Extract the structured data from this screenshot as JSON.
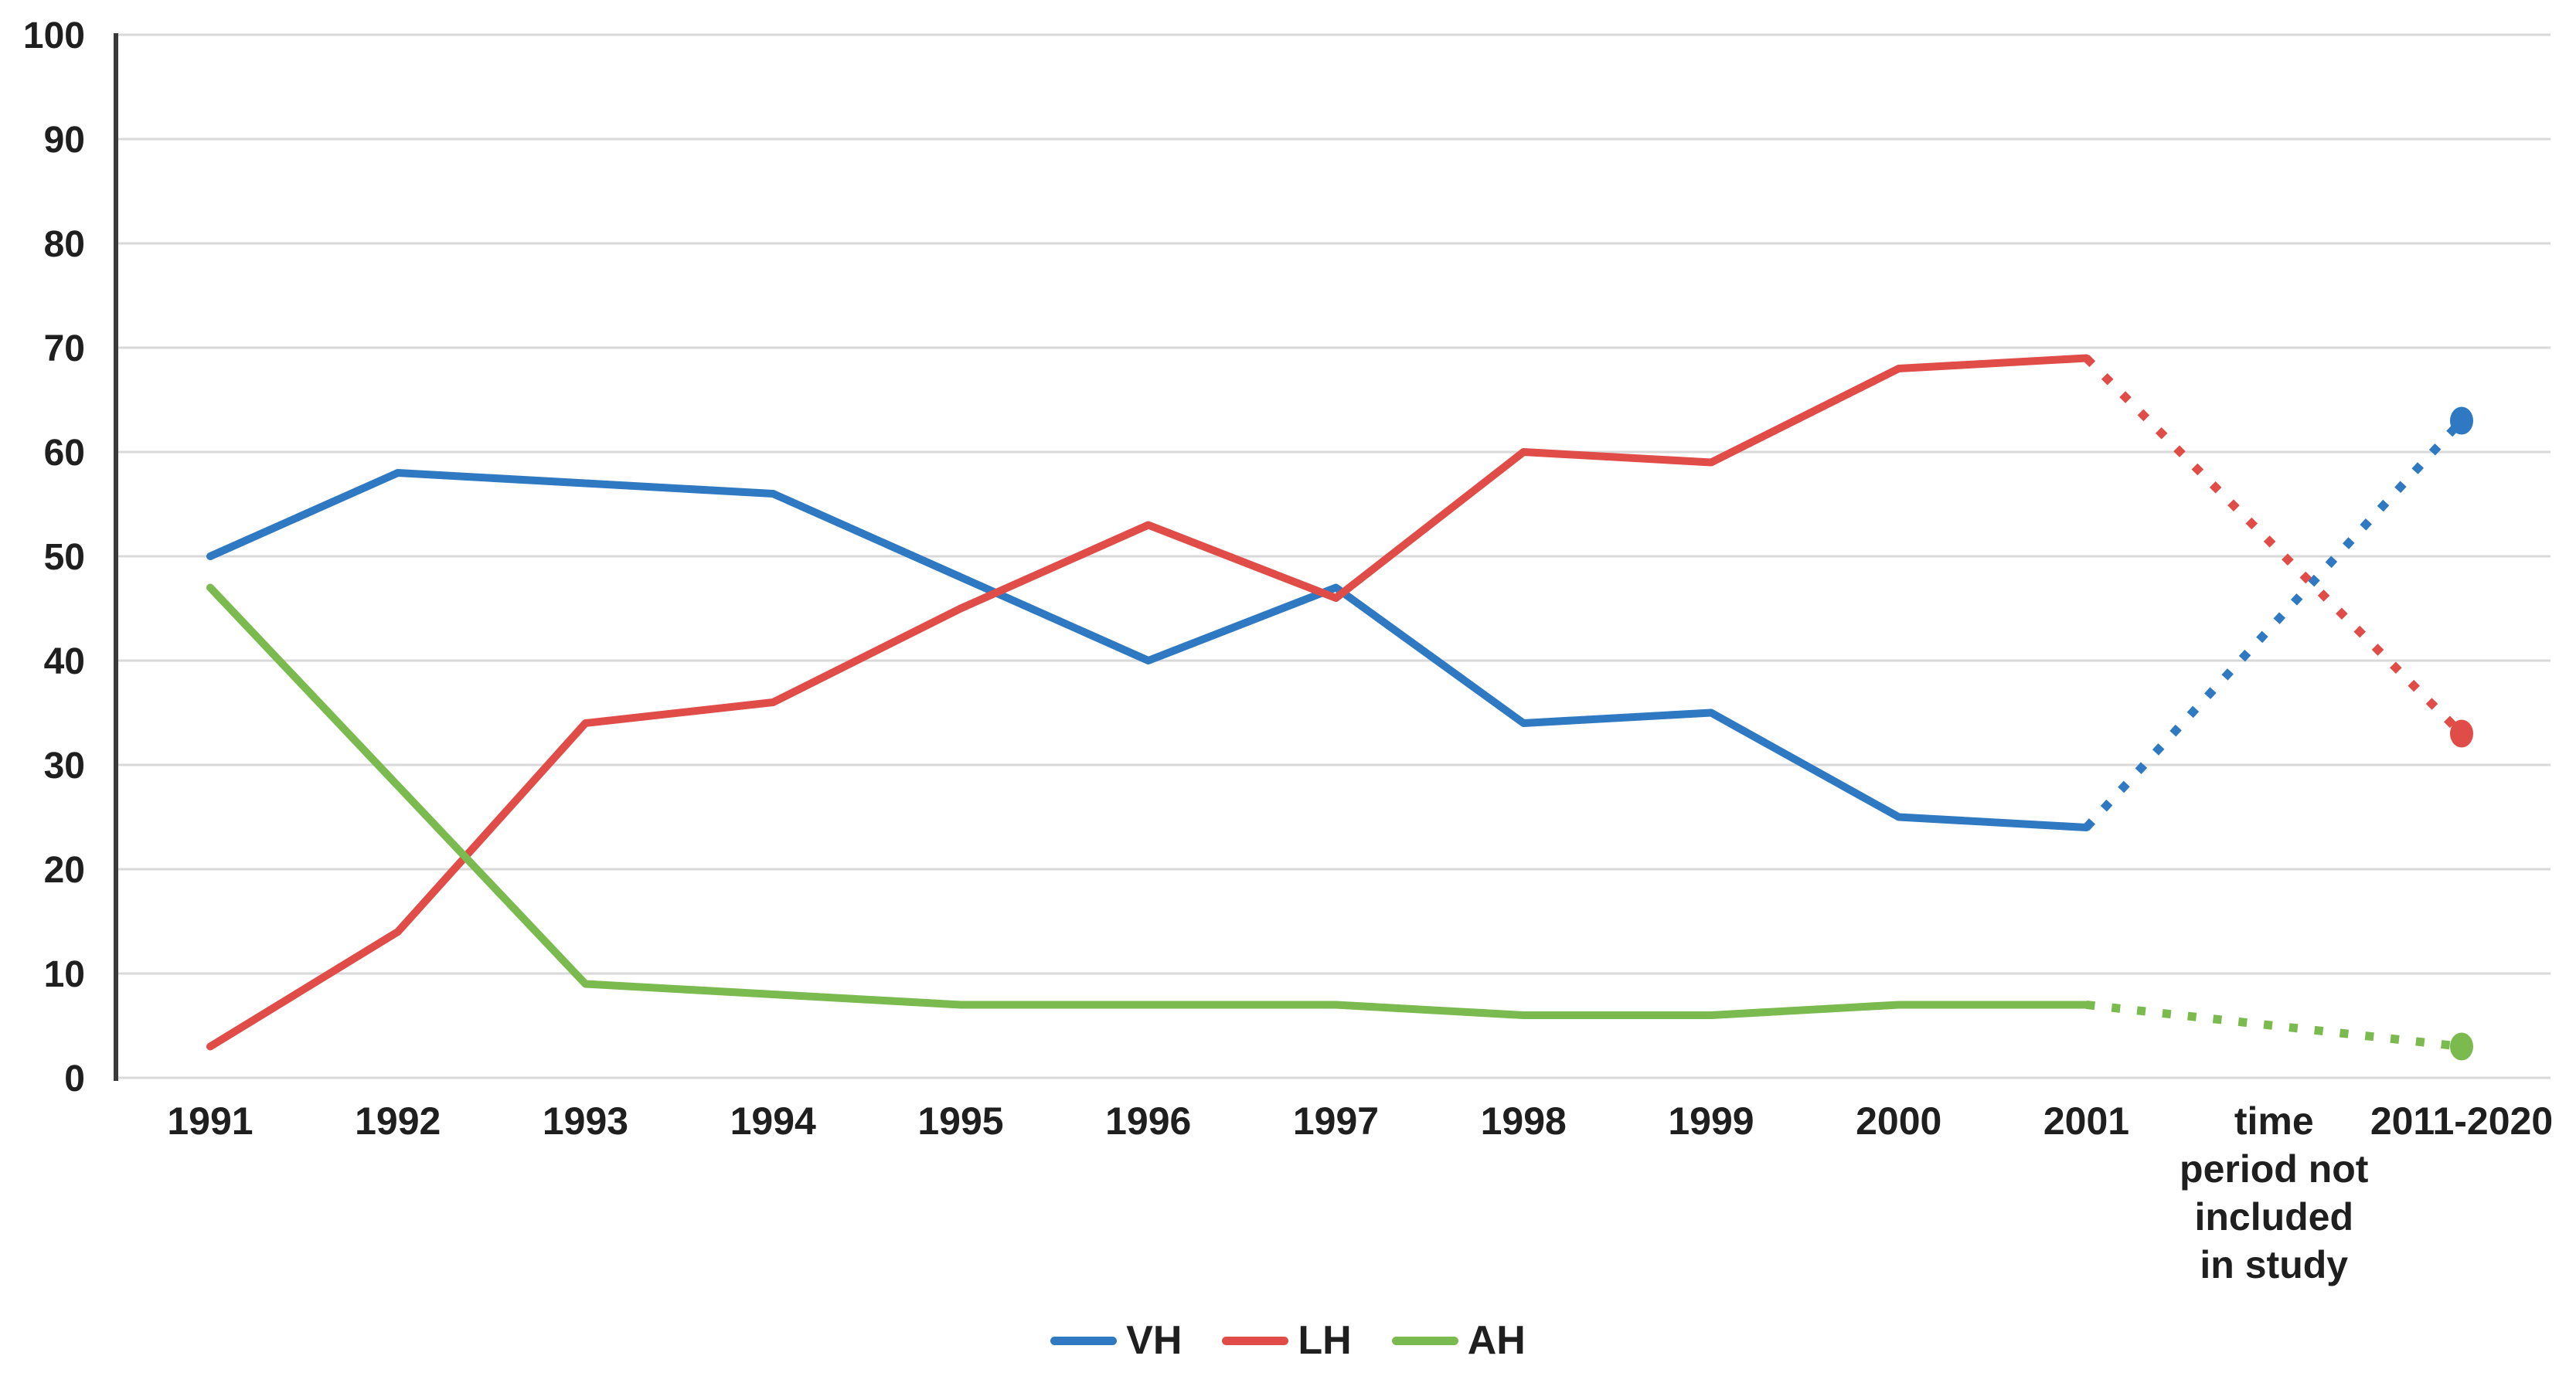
{
  "chart_data": {
    "type": "line",
    "title": "",
    "xlabel": "",
    "ylabel": "",
    "ylim": [
      0,
      100
    ],
    "ytick_step": 10,
    "grid": true,
    "legend_position": "bottom",
    "categories": [
      "1991",
      "1992",
      "1993",
      "1994",
      "1995",
      "1996",
      "1997",
      "1998",
      "1999",
      "2000",
      "2001",
      "time period not included in study",
      "2011-2020"
    ],
    "excluded_period_label_lines": [
      "time",
      "period not",
      "included",
      "in study"
    ],
    "excluded_period_index": 11,
    "projection_category": "2011-2020",
    "projection_style": "dotted",
    "series": [
      {
        "name": "VH",
        "color": "#2E79C1",
        "values": [
          50,
          58,
          57,
          56,
          48,
          40,
          47,
          34,
          35,
          25,
          24
        ],
        "projected_value": 63
      },
      {
        "name": "LH",
        "color": "#E04C48",
        "values": [
          3,
          14,
          34,
          36,
          45,
          53,
          46,
          60,
          59,
          68,
          69
        ],
        "projected_value": 33
      },
      {
        "name": "AH",
        "color": "#7BBA4E",
        "values": [
          47,
          28,
          9,
          8,
          7,
          7,
          7,
          6,
          6,
          7,
          7
        ],
        "projected_value": 3
      }
    ],
    "axis_color": "#3A3A3A",
    "gridline_color": "#D9D9D9",
    "tick_label_color": "#1F1F1F"
  }
}
